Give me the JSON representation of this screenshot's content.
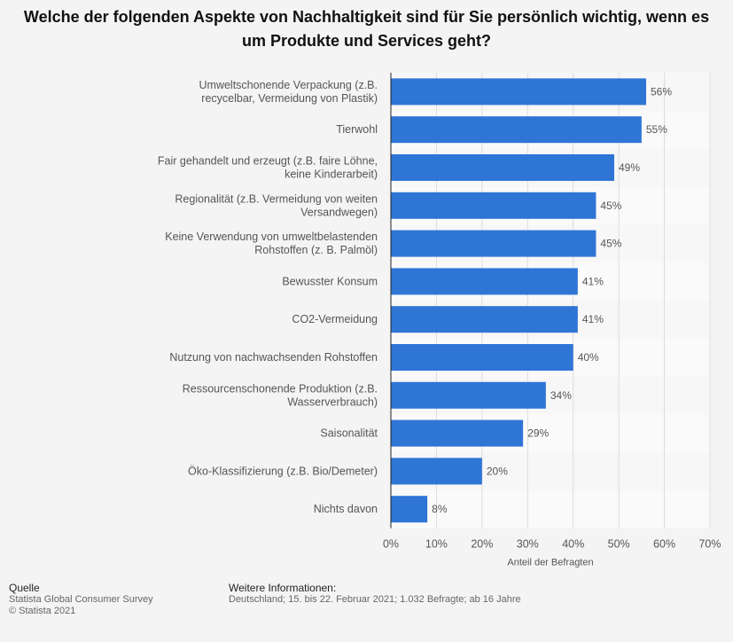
{
  "chart_data": {
    "type": "bar",
    "orientation": "horizontal",
    "title": "Welche der folgenden Aspekte von Nachhaltigkeit sind für Sie persönlich wichtig, wenn es um Produkte und Services geht?",
    "categories": [
      [
        "Umweltschonende Verpackung (z.B.",
        "recycelbar, Vermeidung von Plastik)"
      ],
      [
        "Tierwohl"
      ],
      [
        "Fair gehandelt und erzeugt (z.B. faire Löhne,",
        "keine Kinderarbeit)"
      ],
      [
        "Regionalität (z.B. Vermeidung von weiten",
        "Versandwegen)"
      ],
      [
        "Keine Verwendung von umweltbelastenden",
        "Rohstoffen (z. B. Palmöl)"
      ],
      [
        "Bewusster Konsum"
      ],
      [
        "CO2-Vermeidung"
      ],
      [
        "Nutzung von nachwachsenden Rohstoffen"
      ],
      [
        "Ressourcenschonende Produktion (z.B.",
        "Wasserverbrauch)"
      ],
      [
        "Saisonalität"
      ],
      [
        "Öko-Klassifizierung (z.B. Bio/Demeter)"
      ],
      [
        "Nichts davon"
      ]
    ],
    "values": [
      56,
      55,
      49,
      45,
      45,
      41,
      41,
      40,
      34,
      29,
      20,
      8
    ],
    "value_labels": [
      "56%",
      "55%",
      "49%",
      "45%",
      "45%",
      "41%",
      "41%",
      "40%",
      "34%",
      "29%",
      "20%",
      "8%"
    ],
    "xlabel": "Anteil der Befragten",
    "xlim": [
      0,
      70
    ],
    "xticks": [
      0,
      10,
      20,
      30,
      40,
      50,
      60,
      70
    ],
    "xtick_labels": [
      "0%",
      "10%",
      "20%",
      "30%",
      "40%",
      "50%",
      "60%",
      "70%"
    ],
    "bar_color": "#2f75d6",
    "grid": true
  },
  "footer": {
    "source_heading": "Quelle",
    "source_lines": [
      "Statista Global Consumer Survey",
      "© Statista 2021"
    ],
    "info_heading": "Weitere Informationen:",
    "info_text": "Deutschland; 15. bis 22. Februar 2021; 1.032 Befragte; ab 16 Jahre"
  }
}
